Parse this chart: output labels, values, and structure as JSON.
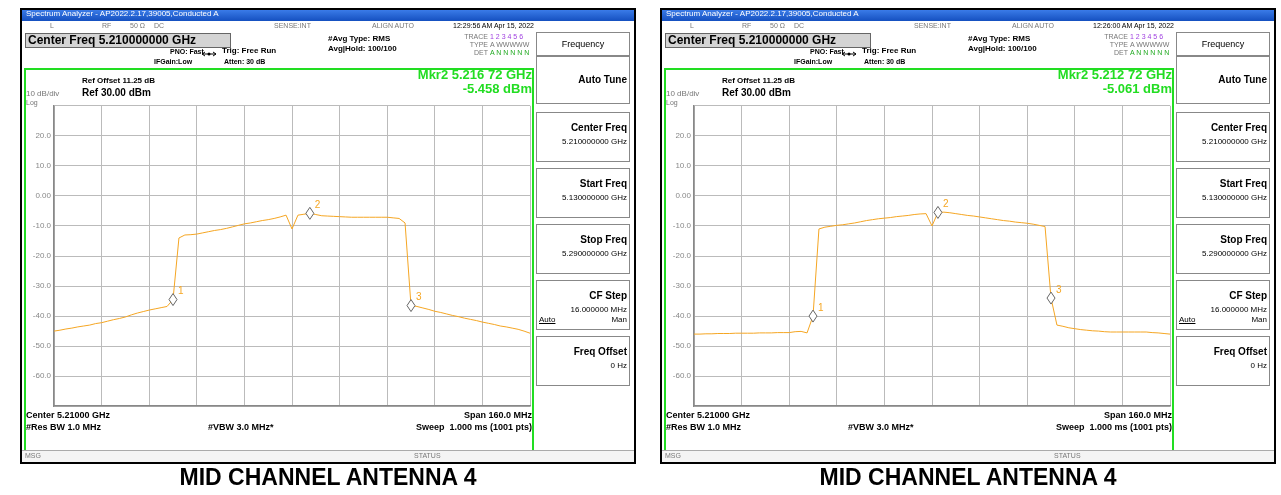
{
  "chart_data": [
    {
      "type": "line",
      "title": "MID CHANNEL ANTENNA 4",
      "categories": [
        null,
        null,
        null,
        null,
        null,
        null,
        null,
        null,
        null,
        null,
        null,
        null,
        null,
        null,
        null,
        null,
        null,
        null,
        null,
        null,
        null,
        null,
        null,
        null,
        null,
        null,
        null,
        null,
        null,
        null,
        null,
        null,
        null,
        null,
        null,
        null,
        null,
        null,
        null,
        null,
        null,
        null,
        null,
        null,
        null,
        null,
        null,
        null,
        null,
        null,
        null,
        null,
        null,
        null,
        null,
        null,
        null,
        null,
        null,
        null,
        null,
        null,
        null,
        null,
        null,
        null,
        null,
        null,
        null,
        null,
        null,
        null,
        null,
        null,
        null,
        null,
        null,
        null,
        null,
        null,
        null
      ],
      "ylim": [
        -70,
        30
      ],
      "yticks": [
        {
          "value": -70,
          "label": null
        },
        {
          "value": -60,
          "label": "-60.0"
        },
        {
          "value": -50,
          "label": "-50.0"
        },
        {
          "value": -40,
          "label": "-40.0"
        },
        {
          "value": -30,
          "label": "-30.0"
        },
        {
          "value": -20,
          "label": "-20.0"
        },
        {
          "value": -10,
          "label": "-10.0"
        },
        {
          "value": 0,
          "label": "0.00"
        },
        {
          "value": 10,
          "label": "10.0"
        },
        {
          "value": 20,
          "label": "20.0"
        },
        {
          "value": 30,
          "label": null
        }
      ],
      "grid": true,
      "tick_labels": "y",
      "series": [
        {
          "color": "#f5a623",
          "values": [
            -45.0,
            -44.7,
            -44.3,
            -44.0,
            -43.6,
            -43.3,
            -43.0,
            -42.5,
            -42.2,
            -41.7,
            -41.2,
            -40.8,
            -40.3,
            -39.6,
            -39.0,
            -38.5,
            -38.0,
            -37.6,
            -37.2,
            -36.8,
            -34.5,
            -14.0,
            -13.0,
            -12.9,
            -12.7,
            -12.3,
            -11.9,
            -11.5,
            -11.2,
            -10.8,
            -10.3,
            -9.8,
            -9.3,
            -9.0,
            -8.6,
            -8.2,
            -7.9,
            -7.5,
            -7.0,
            -6.4,
            -11.0,
            -6.4,
            -6.1,
            -5.8,
            -6.2,
            -6.6,
            -6.7,
            -6.8,
            -6.9,
            -7.0,
            -7.1,
            -7.1,
            -7.1,
            -7.1,
            -7.1,
            -7.1,
            -7.1,
            -7.3,
            -7.5,
            -9.0,
            -36.5,
            -36.8,
            -37.3,
            -37.8,
            -38.4,
            -38.8,
            -39.3,
            -39.8,
            -40.2,
            -40.7,
            -41.1,
            -41.5,
            -42.0,
            -42.4,
            -42.8,
            -43.3,
            -43.6,
            -44.0,
            -44.4,
            -45.0,
            -45.7
          ]
        }
      ],
      "annotations": [
        "Spectrum Analyzer - AP2022.2.17,39005,Conducted A",
        "L",
        "RF",
        "50 Ω",
        "DC",
        "SENSE:INT",
        "ALIGN AUTO",
        "12:29:56 AM Apr 15, 2022",
        "Center Freq 5.210000000 GHz",
        "PNO: Fast",
        "IFGain:Low",
        "Trig: Free Run",
        "Atten: 30 dB",
        "#Avg Type: RMS",
        "Avg|Hold: 100/100",
        "TRACE",
        "1 2 3 4 5 6",
        "TYPE",
        "A WWWWW",
        "DET",
        "A N N N N N",
        "Ref Offset 11.25 dB",
        "Ref 30.00 dBm",
        "10 dB/div",
        "Log",
        "Mkr2 5.216 72 GHz",
        "-5.458 dBm",
        "Center 5.21000 GHz",
        "Span 160.0 MHz",
        "#Res BW 1.0 MHz",
        "#VBW 3.0 MHz*",
        "Sweep  1.000 ms (1001 pts)",
        "MSG",
        "STATUS",
        "Frequency",
        "Auto Tune",
        "Center Freq",
        "5.210000000 GHz",
        "Start Freq",
        "5.130000000 GHz",
        "Stop Freq",
        "5.290000000 GHz",
        "CF Step",
        "16.000000 MHz",
        "Auto",
        "Man",
        "Freq Offset",
        "0 Hz",
        {
          "text": "1",
          "y": -34.5
        },
        {
          "text": "2",
          "y": -5.8
        },
        {
          "text": "3",
          "y": -36.5
        }
      ]
    },
    {
      "type": "line",
      "title": "MID CHANNEL ANTENNA 4",
      "categories": [
        null,
        null,
        null,
        null,
        null,
        null,
        null,
        null,
        null,
        null,
        null,
        null,
        null,
        null,
        null,
        null,
        null,
        null,
        null,
        null,
        null,
        null,
        null,
        null,
        null,
        null,
        null,
        null,
        null,
        null,
        null,
        null,
        null,
        null,
        null,
        null,
        null,
        null,
        null,
        null,
        null,
        null,
        null,
        null,
        null,
        null,
        null,
        null,
        null,
        null,
        null,
        null,
        null,
        null,
        null,
        null,
        null,
        null,
        null,
        null,
        null,
        null,
        null,
        null,
        null,
        null,
        null,
        null,
        null,
        null,
        null,
        null,
        null,
        null,
        null,
        null,
        null,
        null,
        null,
        null,
        null
      ],
      "ylim": [
        -70,
        30
      ],
      "yticks": [
        {
          "value": -70,
          "label": null
        },
        {
          "value": -60,
          "label": "-60.0"
        },
        {
          "value": -50,
          "label": "-50.0"
        },
        {
          "value": -40,
          "label": "-40.0"
        },
        {
          "value": -30,
          "label": "-30.0"
        },
        {
          "value": -20,
          "label": "-20.0"
        },
        {
          "value": -10,
          "label": "-10.0"
        },
        {
          "value": 0,
          "label": "0.00"
        },
        {
          "value": 10,
          "label": "10.0"
        },
        {
          "value": 20,
          "label": "20.0"
        },
        {
          "value": 30,
          "label": null
        }
      ],
      "grid": true,
      "tick_labels": "y",
      "series": [
        {
          "color": "#f5a623",
          "values": [
            -46.0,
            -46.0,
            -45.9,
            -45.9,
            -45.8,
            -45.8,
            -45.8,
            -45.7,
            -45.7,
            -45.7,
            -45.7,
            -45.6,
            -45.6,
            -45.6,
            -45.5,
            -45.5,
            -45.5,
            -45.2,
            -45.1,
            -45.6,
            -40.0,
            -11.0,
            -10.4,
            -10.1,
            -9.8,
            -9.6,
            -9.3,
            -9.0,
            -8.6,
            -8.2,
            -7.9,
            -7.6,
            -7.4,
            -7.2,
            -6.9,
            -6.7,
            -6.5,
            -6.2,
            -6.0,
            -5.9,
            -10.0,
            -5.5,
            -5.4,
            -5.6,
            -5.9,
            -6.2,
            -6.5,
            -6.7,
            -7.0,
            -7.3,
            -7.6,
            -7.9,
            -8.2,
            -8.4,
            -8.7,
            -8.9,
            -9.1,
            -9.4,
            -9.8,
            -10.2,
            -34.0,
            -43.0,
            -43.4,
            -43.9,
            -44.2,
            -44.5,
            -44.7,
            -44.9,
            -45.0,
            -45.2,
            -45.3,
            -45.3,
            -45.3,
            -45.3,
            -45.3,
            -45.3,
            -45.3,
            -45.5,
            -45.6,
            -45.8,
            -46.0
          ]
        }
      ],
      "annotations": [
        "Spectrum Analyzer - AP2022.2.17,39005,Conducted A",
        "L",
        "RF",
        "50 Ω",
        "DC",
        "SENSE:INT",
        "ALIGN AUTO",
        "12:26:00 AM Apr 15, 2022",
        "Center Freq 5.210000000 GHz",
        "PNO: Fast",
        "IFGain:Low",
        "Trig: Free Run",
        "Atten: 30 dB",
        "#Avg Type: RMS",
        "Avg|Hold: 100/100",
        "TRACE",
        "1 2 3 4 5 6",
        "TYPE",
        "A WWWWW",
        "DET",
        "A N N N N N",
        "Ref Offset 11.25 dB",
        "Ref 30.00 dBm",
        "10 dB/div",
        "Log",
        "Mkr2 5.212 72 GHz",
        "-5.061 dBm",
        "Center 5.21000 GHz",
        "Span 160.0 MHz",
        "#Res BW 1.0 MHz",
        "#VBW 3.0 MHz*",
        "Sweep  1.000 ms (1001 pts)",
        "MSG",
        "STATUS",
        "Frequency",
        "Auto Tune",
        "Center Freq",
        "5.210000000 GHz",
        "Start Freq",
        "5.130000000 GHz",
        "Stop Freq",
        "5.290000000 GHz",
        "CF Step",
        "16.000000 MHz",
        "Auto",
        "Man",
        "Freq Offset",
        "0 Hz",
        {
          "text": "1",
          "y": -40.0
        },
        {
          "text": "2",
          "y": -5.5
        },
        {
          "text": "3",
          "y": -34.0
        }
      ]
    }
  ]
}
